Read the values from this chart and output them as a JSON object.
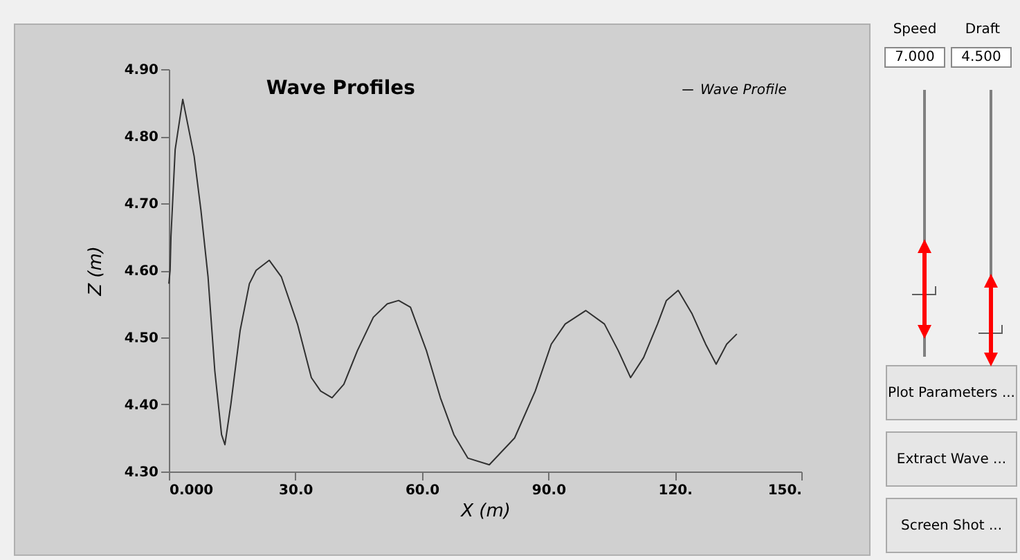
{
  "chart_data": {
    "type": "line",
    "title": "Wave Profiles",
    "xlabel": "X (m)",
    "ylabel": "Z (m)",
    "x": [
      0,
      0.3,
      0.5,
      1.5,
      3.3,
      6.0,
      7.6,
      9.3,
      10.9,
      12.5,
      13.3,
      14.7,
      16.9,
      19.1,
      20.7,
      23.8,
      26.7,
      30.5,
      33.8,
      36.0,
      38.7,
      41.5,
      44.7,
      48.5,
      51.8,
      54.5,
      57.3,
      61.1,
      64.4,
      67.6,
      70.9,
      76.0,
      82.0,
      86.9,
      90.7,
      94.0,
      98.9,
      103.3,
      106.6,
      109.5,
      112.6,
      115.9,
      118.0,
      120.8,
      124.1,
      127.3,
      129.8,
      132.3,
      134.7
    ],
    "series": [
      {
        "name": "Wave Profile",
        "color": "#303030",
        "values": [
          4.58,
          4.6,
          4.65,
          4.78,
          4.855,
          4.77,
          4.69,
          4.59,
          4.45,
          4.355,
          4.34,
          4.4,
          4.51,
          4.58,
          4.6,
          4.615,
          4.59,
          4.52,
          4.44,
          4.42,
          4.41,
          4.43,
          4.48,
          4.53,
          4.55,
          4.555,
          4.545,
          4.48,
          4.41,
          4.355,
          4.32,
          4.31,
          4.35,
          4.42,
          4.49,
          4.52,
          4.54,
          4.52,
          4.48,
          4.44,
          4.47,
          4.52,
          4.555,
          4.57,
          4.535,
          4.49,
          4.46,
          4.49,
          4.505
        ]
      }
    ],
    "xlim": [
      0,
      150
    ],
    "xticks": [
      {
        "value": 0,
        "label": "0.000"
      },
      {
        "value": 30,
        "label": "30.0"
      },
      {
        "value": 60,
        "label": "60.0"
      },
      {
        "value": 90,
        "label": "90.0"
      },
      {
        "value": 120,
        "label": "120."
      },
      {
        "value": 150,
        "label": "150."
      }
    ],
    "ylim": [
      4.3,
      4.9
    ],
    "yticks": [
      {
        "value": 4.3,
        "label": "4.30"
      },
      {
        "value": 4.4,
        "label": "4.40"
      },
      {
        "value": 4.5,
        "label": "4.50"
      },
      {
        "value": 4.6,
        "label": "4.60"
      },
      {
        "value": 4.7,
        "label": "4.70"
      },
      {
        "value": 4.8,
        "label": "4.80"
      },
      {
        "value": 4.9,
        "label": "4.90"
      }
    ],
    "grid": false,
    "legend": "top right",
    "marker": "none",
    "line_style": "solid",
    "annotations": [
      "Speed",
      "Draft",
      "7.000",
      "4.500",
      "Plot Parameters ...",
      "Extract Wave ...",
      "Screen Shot ..."
    ]
  }
}
